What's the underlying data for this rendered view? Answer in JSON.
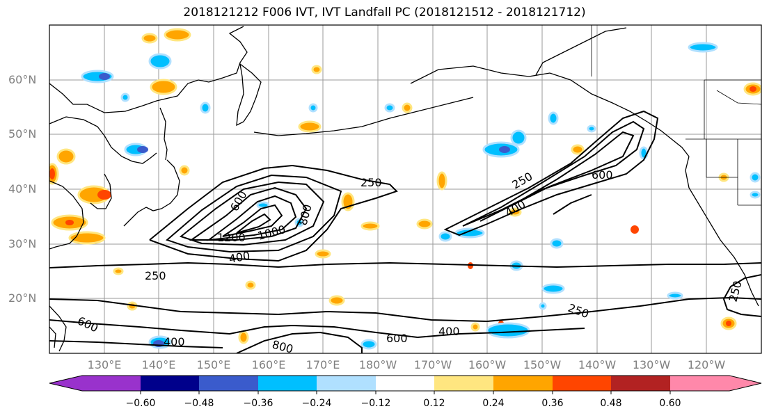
{
  "title": "2018121212 F006 IVT, IVT Landfall PC (2018121512 - 2018121712)",
  "map": {
    "projection": "equirectangular",
    "lat_range": [
      10,
      70
    ],
    "lon_range": [
      120,
      250
    ],
    "lat_labels": [
      "60°N",
      "50°N",
      "40°N",
      "30°N",
      "20°N"
    ],
    "lon_labels": [
      "130°E",
      "140°E",
      "150°E",
      "160°E",
      "170°E",
      "180°W",
      "170°W",
      "160°W",
      "150°W",
      "140°W",
      "130°W",
      "120°W"
    ],
    "contour_labels": [
      "250",
      "250",
      "250",
      "250",
      "250",
      "400",
      "400",
      "400",
      "400",
      "600",
      "600",
      "600",
      "600",
      "800",
      "800",
      "1000",
      "1200"
    ]
  },
  "colorbar": {
    "ticks": [
      "−0.60",
      "−0.48",
      "−0.36",
      "−0.24",
      "−0.12",
      "0.12",
      "0.24",
      "0.36",
      "0.48",
      "0.60"
    ],
    "colors": [
      "#9932cc",
      "#00008b",
      "#3a5bcc",
      "#00bfff",
      "#b0e0ff",
      "#ffffff",
      "#ffe680",
      "#ffa500",
      "#ff4500",
      "#b22222",
      "#ff88aa"
    ]
  }
}
